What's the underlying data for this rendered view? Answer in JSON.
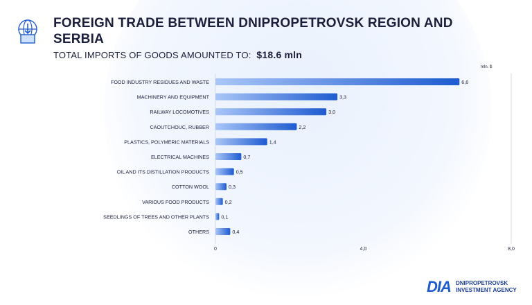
{
  "header": {
    "title": "FOREIGN TRADE BETWEEN DNIPROPETROVSK REGION AND SERBIA",
    "subtitle_label": "TOTAL IMPORTS OF GOODS AMOUNTED TO:",
    "subtitle_value": "$18.6 mln",
    "icon": "globe-trade-icon"
  },
  "brand": {
    "logo_text": "DIA",
    "line1": "DNIPROPETROVSK",
    "line2": "INVESTMENT AGENCY"
  },
  "colors": {
    "bar_start": "#a9c6f7",
    "bar_end": "#1e5bd0",
    "text": "#1b1f3b",
    "axis": "#d5dae4"
  },
  "chart_data": {
    "type": "bar",
    "orientation": "horizontal",
    "unit_label": "mln. $",
    "categories": [
      "FOOD INDUSTRY RESIDUES AND WASTE",
      "MACHINERY AND EQUIPMENT",
      "RAILWAY LOCOMOTIVES",
      "CAOUTCHOUC, RUBBER",
      "PLASTICS, POLYMERIC MATERIALS",
      "ELECTRICAL MACHINES",
      "OIL AND ITS DISTILLATION PRODUCTS",
      "COTTON WOOL",
      "VARIOUS FOOD PRODUCTS",
      "SEEDLINGS OF TREES AND OTHER PLANTS",
      "OTHERS"
    ],
    "values": [
      6.6,
      3.3,
      3.0,
      2.2,
      1.4,
      0.7,
      0.5,
      0.3,
      0.2,
      0.1,
      0.4
    ],
    "value_labels": [
      "6,6",
      "3,3",
      "3,0",
      "2,2",
      "1,4",
      "0,7",
      "0,5",
      "0,3",
      "0,2",
      "0,1",
      "0,4"
    ],
    "xlim": [
      0,
      8
    ],
    "xticks": [
      0,
      4,
      8
    ],
    "xtick_labels": [
      "0",
      "4,0",
      "8,0"
    ],
    "grid": false
  }
}
